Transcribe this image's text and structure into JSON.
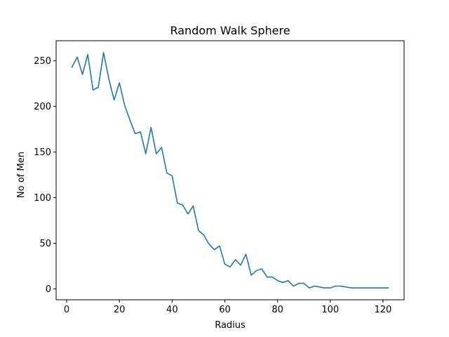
{
  "chart_data": {
    "type": "line",
    "title": "Random Walk Sphere",
    "xlabel": "Radius",
    "ylabel": "No of Men",
    "xlim": [
      -4,
      128
    ],
    "ylim": [
      -12,
      272
    ],
    "xticks": [
      0,
      20,
      40,
      60,
      80,
      100,
      120
    ],
    "yticks": [
      0,
      50,
      100,
      150,
      200,
      250
    ],
    "grid": false,
    "line_color": "#1f77b4",
    "series": [
      {
        "name": "",
        "x": [
          2,
          4,
          6,
          8,
          10,
          12,
          14,
          16,
          18,
          20,
          22,
          24,
          26,
          28,
          30,
          32,
          34,
          36,
          38,
          40,
          42,
          44,
          46,
          48,
          50,
          52,
          54,
          56,
          58,
          60,
          62,
          64,
          66,
          68,
          70,
          72,
          74,
          76,
          78,
          80,
          82,
          84,
          86,
          88,
          90,
          92,
          94,
          96,
          98,
          100,
          102,
          104,
          106,
          108,
          110,
          112,
          114,
          116,
          118,
          120,
          122
        ],
        "y": [
          243,
          254,
          235,
          257,
          218,
          221,
          259,
          230,
          207,
          226,
          201,
          185,
          170,
          172,
          148,
          177,
          148,
          155,
          127,
          124,
          94,
          92,
          82,
          91,
          64,
          59,
          49,
          43,
          47,
          27,
          24,
          32,
          26,
          38,
          15,
          20,
          22,
          13,
          13,
          9,
          7,
          9,
          3,
          6,
          6,
          1,
          3,
          2,
          1,
          1,
          3,
          3,
          2,
          1,
          1,
          1,
          1,
          1,
          1,
          1,
          1
        ]
      }
    ]
  }
}
